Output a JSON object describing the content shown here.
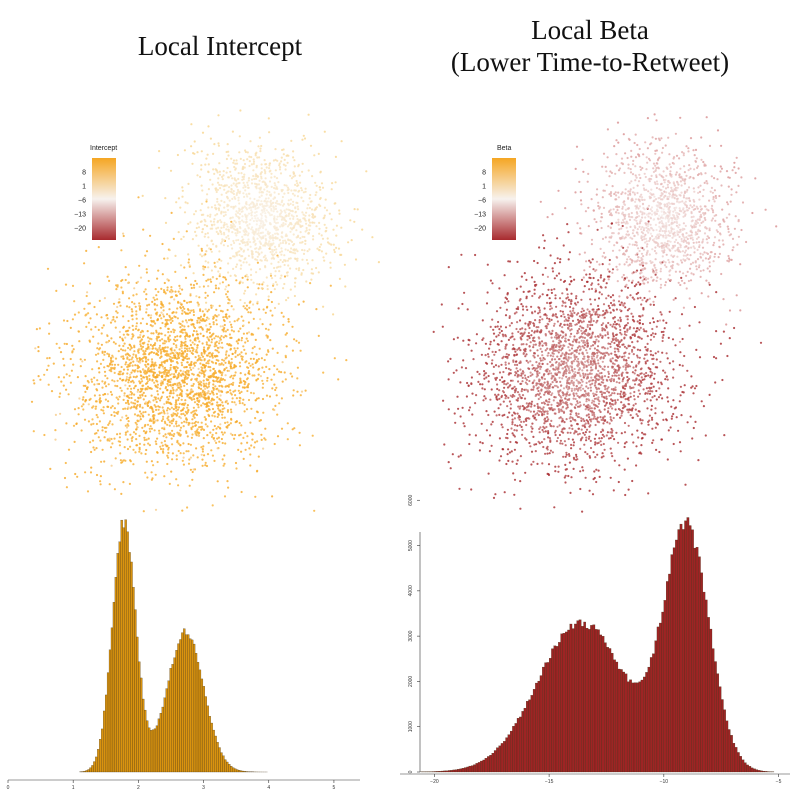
{
  "titles": {
    "left": "Local Intercept",
    "right_line1": "Local Beta",
    "right_line2": "(Lower Time-to-Retweet)"
  },
  "colors": {
    "orange": "#f5a623",
    "white": "#f7f2ee",
    "red": "#a82a2e",
    "hist_left": "#d9930f",
    "hist_right": "#9e2424",
    "hist_edge": "#3a2a10"
  },
  "chart_data": [
    {
      "type": "scatter",
      "title": "Local Intercept",
      "legend": {
        "title": "Intercept",
        "ticks": [
          "8",
          "1",
          "−6",
          "−13",
          "−20"
        ],
        "placement": "top-left"
      },
      "gradient": [
        "#f5a623",
        "#f7f2ee",
        "#a82a2e"
      ],
      "grid": false
    },
    {
      "type": "scatter",
      "title": "Local Beta (Lower Time-to-Retweet)",
      "legend": {
        "title": "Beta",
        "ticks": [
          "8",
          "1",
          "−6",
          "−13",
          "−20"
        ],
        "placement": "top-left"
      },
      "gradient": [
        "#f5a623",
        "#f7f2ee",
        "#a82a2e"
      ],
      "grid": false
    },
    {
      "type": "bar",
      "series_name": "",
      "xlim": [
        0,
        5.4
      ],
      "xticks": [
        "0",
        "1",
        "2",
        "3",
        "4",
        "5"
      ],
      "xtick_values": [
        0,
        1,
        2,
        3,
        4,
        5
      ],
      "ylabel": "",
      "peaks": [
        {
          "center": 1.78,
          "height": 1.0,
          "width": 0.18
        },
        {
          "center": 2.72,
          "height": 0.56,
          "width": 0.28
        }
      ],
      "bin_range": [
        1.1,
        4.9
      ],
      "bin_width": 0.03
    },
    {
      "type": "bar",
      "series_name": "",
      "xlim": [
        -21.5,
        -4.5
      ],
      "ylim": [
        0,
        6000
      ],
      "xticks": [
        "−20",
        "−15",
        "−10",
        "−5"
      ],
      "xtick_values": [
        -20,
        -15,
        -10,
        -5
      ],
      "yticks": [
        "0",
        "1000",
        "2000",
        "3000",
        "4000",
        "5000",
        "6000"
      ],
      "ytick_values": [
        0,
        1000,
        2000,
        3000,
        4000,
        5000,
        6000
      ],
      "peaks": [
        {
          "center": -13.6,
          "height": 3300,
          "width": 1.9
        },
        {
          "center": -9.0,
          "height": 5300,
          "width": 1.0
        }
      ],
      "bin_range": [
        -20.6,
        -5.2
      ],
      "bin_width": 0.1
    }
  ]
}
